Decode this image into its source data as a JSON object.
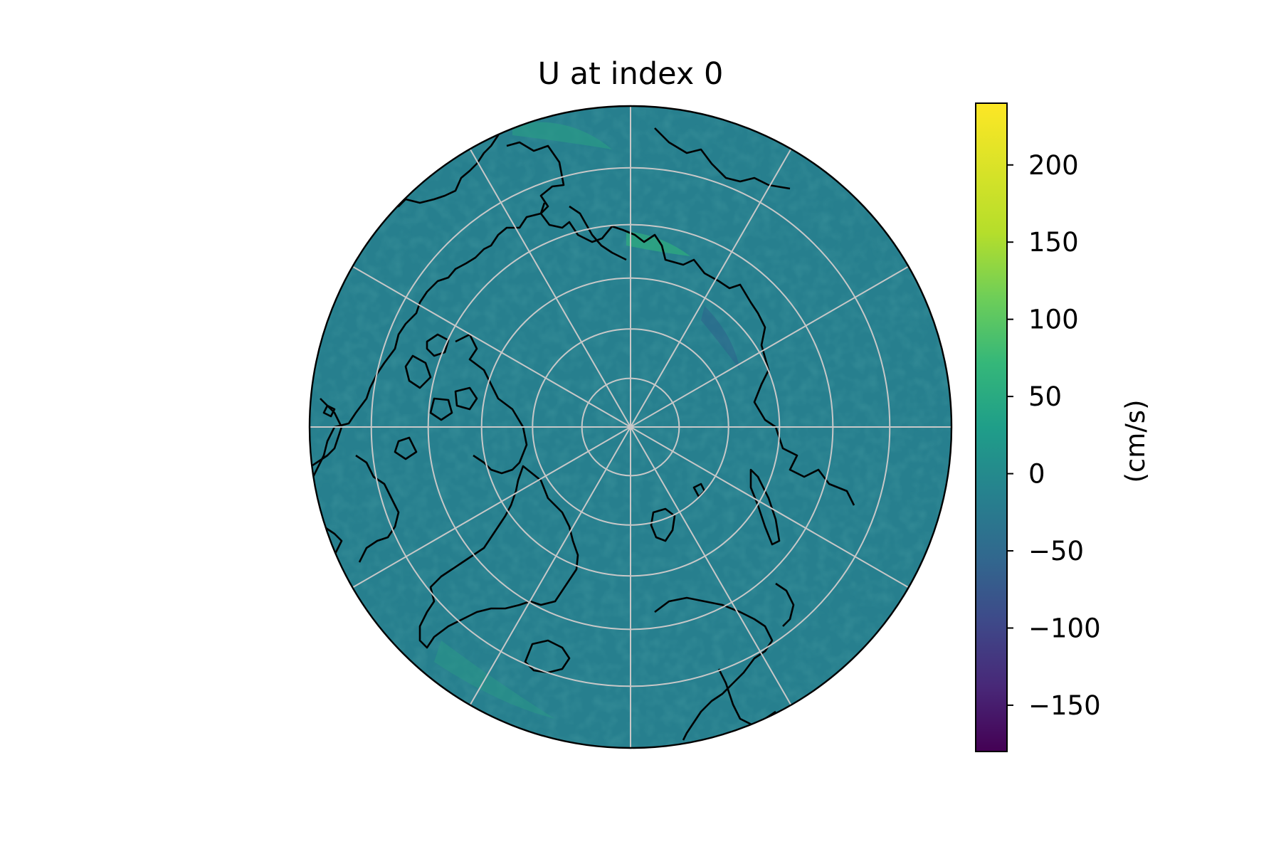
{
  "title": "U at index 0",
  "map": {
    "projection": "north-polar-stereographic",
    "ocean_color": "#277f8e",
    "coastline_color": "#000000",
    "gridline_color": "#c8c8c8",
    "meridians_deg": [
      0,
      30,
      60,
      90,
      120,
      150,
      180,
      210,
      240,
      270,
      300,
      330
    ],
    "parallels_deg": [
      80,
      70,
      60,
      50,
      40
    ]
  },
  "colorbar": {
    "colormap": "viridis",
    "vmin": -180,
    "vmax": 240,
    "ticks": [
      -150,
      -100,
      -50,
      0,
      50,
      100,
      150,
      200
    ],
    "tick_labels": [
      "−150",
      "−100",
      "−50",
      "0",
      "50",
      "100",
      "150",
      "200"
    ],
    "label": "(cm/s)"
  }
}
